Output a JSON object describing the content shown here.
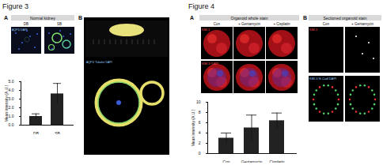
{
  "chart_data": [
    {
      "type": "bar",
      "categories": [
        "DB",
        "SB"
      ],
      "values": [
        1.0,
        3.6
      ],
      "errors": [
        0.3,
        1.2
      ],
      "ylabel": "Mean intensity (A.U.)",
      "ylim": [
        0,
        5
      ],
      "yticks": [
        0,
        1,
        2,
        3,
        4,
        5
      ],
      "color": "#222222"
    },
    {
      "type": "bar",
      "categories": [
        "Con",
        "Gentamycin",
        "Cisplatin"
      ],
      "values": [
        3.0,
        5.0,
        6.4
      ],
      "errors": [
        1.0,
        2.5,
        1.5
      ],
      "ylabel": "Mean intensity (A.U.)",
      "ylim": [
        0,
        10
      ],
      "yticks": [
        0,
        2,
        4,
        6,
        8,
        10
      ],
      "color": "#222222"
    }
  ],
  "figures": [
    {
      "title": "Figure 3",
      "panels": [
        {
          "label": "A",
          "header": "Normal kidney",
          "columns": [
            "DB",
            "SB"
          ],
          "rows": [
            "AQP1/ DAPI"
          ]
        },
        {
          "label": "B",
          "rows": [
            "AQP1/ Tubulin/ DAPI"
          ]
        }
      ]
    },
    {
      "title": "Figure 4",
      "panels": [
        {
          "label": "A",
          "header": "Organoid whole stain",
          "columns": [
            "Con",
            "+ Gentamycin",
            "+ Cisplatin"
          ],
          "rows": [
            "KIM-1",
            "KIM-1/ DAPI"
          ]
        },
        {
          "label": "B",
          "header": "Sectioned organoid stain",
          "columns": [
            "Con",
            "+ Gentamycin"
          ],
          "rows": [
            "KIM-1",
            "KIM-1/ E-Cad/ DAPI"
          ]
        }
      ]
    }
  ]
}
